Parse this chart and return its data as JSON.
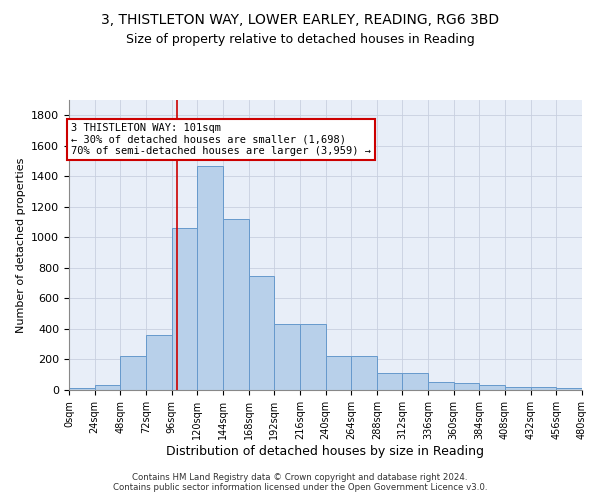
{
  "title": "3, THISTLETON WAY, LOWER EARLEY, READING, RG6 3BD",
  "subtitle": "Size of property relative to detached houses in Reading",
  "xlabel": "Distribution of detached houses by size in Reading",
  "ylabel": "Number of detached properties",
  "bar_values": [
    10,
    35,
    220,
    360,
    1060,
    1470,
    1120,
    750,
    435,
    435,
    225,
    225,
    110,
    110,
    55,
    45,
    30,
    20,
    20,
    10
  ],
  "bin_edges": [
    0,
    24,
    48,
    72,
    96,
    120,
    144,
    168,
    192,
    216,
    240,
    264,
    288,
    312,
    336,
    360,
    384,
    408,
    432,
    456,
    480
  ],
  "tick_labels": [
    "0sqm",
    "24sqm",
    "48sqm",
    "72sqm",
    "96sqm",
    "120sqm",
    "144sqm",
    "168sqm",
    "192sqm",
    "216sqm",
    "240sqm",
    "264sqm",
    "288sqm",
    "312sqm",
    "336sqm",
    "360sqm",
    "384sqm",
    "408sqm",
    "432sqm",
    "456sqm",
    "480sqm"
  ],
  "bar_color": "#b8d0ea",
  "bar_edge_color": "#6699cc",
  "annotation_text": "3 THISTLETON WAY: 101sqm\n← 30% of detached houses are smaller (1,698)\n70% of semi-detached houses are larger (3,959) →",
  "vline_x": 101,
  "footer_line1": "Contains HM Land Registry data © Crown copyright and database right 2024.",
  "footer_line2": "Contains public sector information licensed under the Open Government Licence v3.0.",
  "ylim": [
    0,
    1900
  ],
  "yticks": [
    0,
    200,
    400,
    600,
    800,
    1000,
    1200,
    1400,
    1600,
    1800
  ],
  "background_color": "#e8eef8",
  "grid_color": "#c8cfe0",
  "title_fontsize": 10,
  "subtitle_fontsize": 9,
  "xlabel_fontsize": 9,
  "ylabel_fontsize": 8,
  "annotation_box_color": "#ffffff",
  "annotation_box_edge": "#cc0000",
  "vline_color": "#cc0000"
}
